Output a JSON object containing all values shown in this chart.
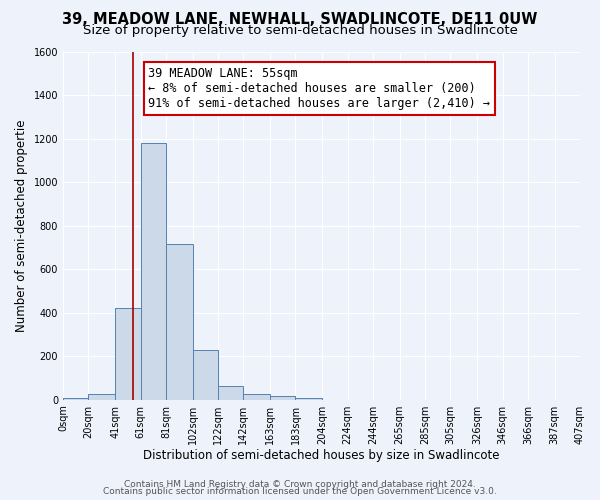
{
  "title": "39, MEADOW LANE, NEWHALL, SWADLINCOTE, DE11 0UW",
  "subtitle": "Size of property relative to semi-detached houses in Swadlincote",
  "xlabel": "Distribution of semi-detached houses by size in Swadlincote",
  "ylabel": "Number of semi-detached propertie",
  "footer1": "Contains HM Land Registry data © Crown copyright and database right 2024.",
  "footer2": "Contains public sector information licensed under the Open Government Licence v3.0.",
  "bin_edges": [
    0,
    20,
    41,
    61,
    81,
    102,
    122,
    142,
    163,
    183,
    204,
    224,
    244,
    265,
    285,
    305,
    326,
    346,
    366,
    387,
    407
  ],
  "bar_heights": [
    10,
    25,
    420,
    1180,
    715,
    230,
    65,
    28,
    18,
    10,
    0,
    0,
    0,
    0,
    0,
    0,
    0,
    0,
    0,
    0
  ],
  "bar_color": "#ccd9e8",
  "bar_edge_color": "#5580b0",
  "red_line_x": 55,
  "annotation_line1": "39 MEADOW LANE: 55sqm",
  "annotation_line2": "← 8% of semi-detached houses are smaller (200)",
  "annotation_line3": "91% of semi-detached houses are larger (2,410) →",
  "ylim": [
    0,
    1600
  ],
  "yticks": [
    0,
    200,
    400,
    600,
    800,
    1000,
    1200,
    1400,
    1600
  ],
  "xtick_labels": [
    "0sqm",
    "20sqm",
    "41sqm",
    "61sqm",
    "81sqm",
    "102sqm",
    "122sqm",
    "142sqm",
    "163sqm",
    "183sqm",
    "204sqm",
    "224sqm",
    "244sqm",
    "265sqm",
    "285sqm",
    "305sqm",
    "326sqm",
    "346sqm",
    "366sqm",
    "387sqm",
    "407sqm"
  ],
  "background_color": "#eef2fb",
  "grid_color": "#ffffff",
  "title_fontsize": 10.5,
  "subtitle_fontsize": 9.5,
  "axis_label_fontsize": 8.5,
  "tick_fontsize": 7,
  "annotation_fontsize": 8.5,
  "footer_fontsize": 6.5
}
